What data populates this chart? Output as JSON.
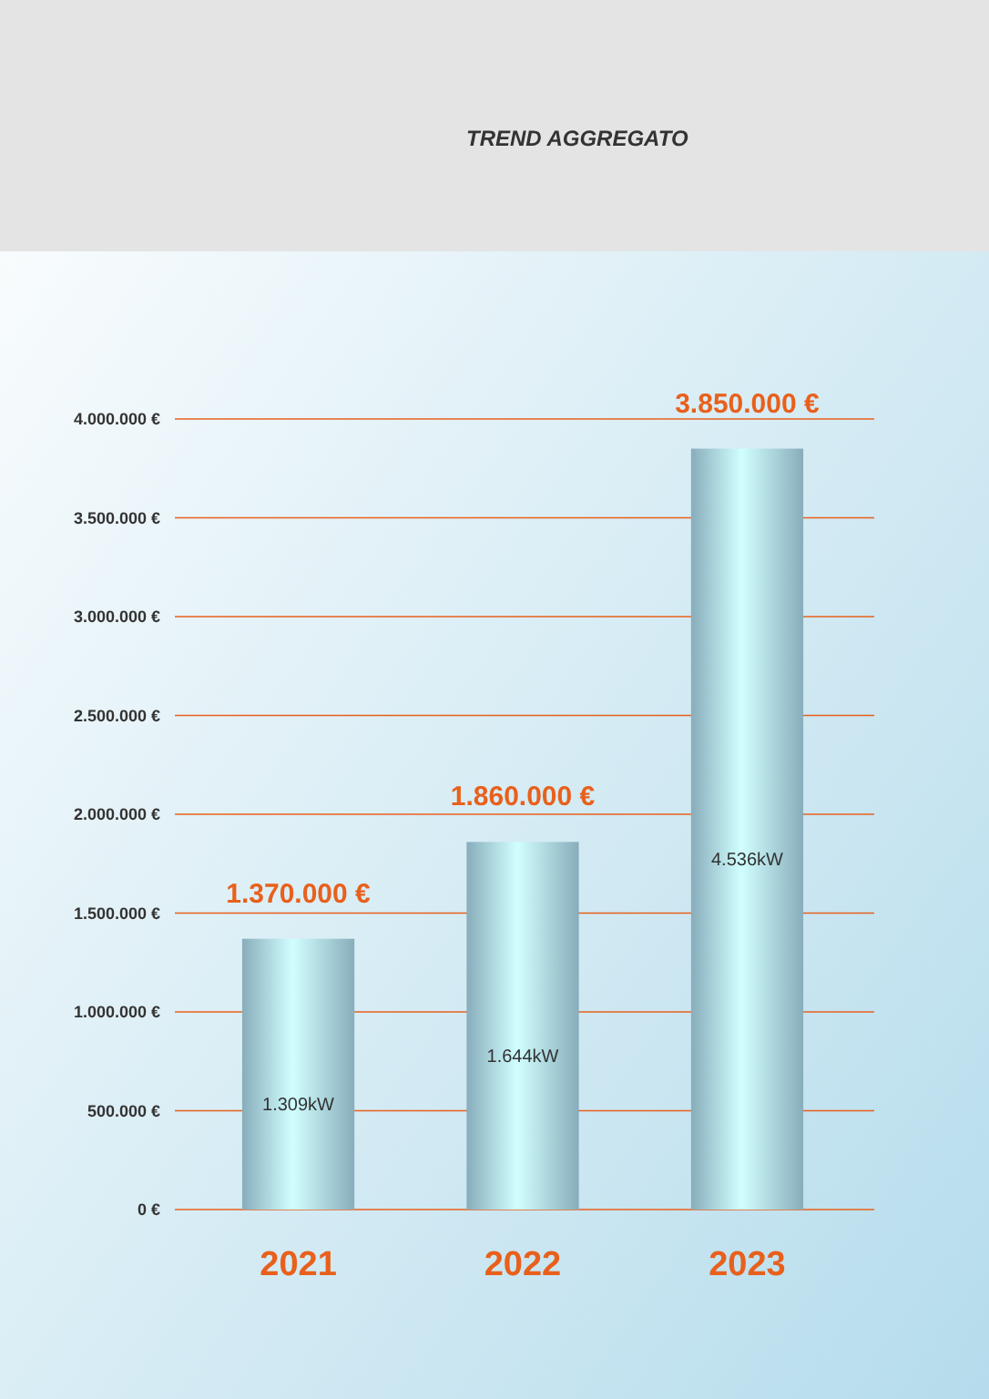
{
  "chart_data": {
    "type": "bar",
    "title": "TREND AGGREGATO",
    "categories": [
      "2021",
      "2022",
      "2023"
    ],
    "values": [
      1370000,
      1860000,
      3850000
    ],
    "value_labels": [
      "1.370.000 €",
      "1.860.000 €",
      "3.850.000 €"
    ],
    "color": "#a9d6e8",
    "ylim": [
      0,
      4000000
    ],
    "yticks": [
      {
        "value": 0,
        "label": "0 €"
      },
      {
        "value": 500000,
        "label": "500.000 €"
      },
      {
        "value": 1000000,
        "label": "1.000.000 €"
      },
      {
        "value": 1500000,
        "label": "1.500.000 €"
      },
      {
        "value": 2000000,
        "label": "2.000.000 €"
      },
      {
        "value": 2500000,
        "label": "2.500.000 €"
      },
      {
        "value": 3000000,
        "label": "3.000.000 €"
      },
      {
        "value": 3500000,
        "label": "3.500.000 €"
      },
      {
        "value": 4000000,
        "label": "4.000.000 €"
      }
    ],
    "grid": "y",
    "annotations": [
      "1.309kW",
      "1.644kW",
      "4.536kW"
    ]
  }
}
